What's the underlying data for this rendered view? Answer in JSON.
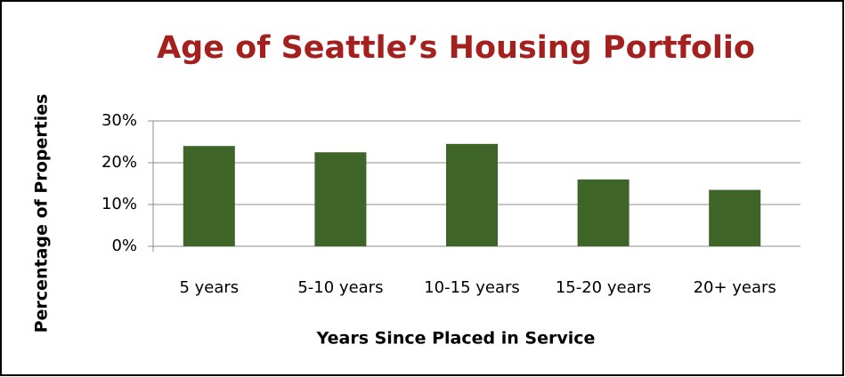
{
  "chart_data": {
    "type": "bar",
    "title": "Age of Seattle’s Housing Portfolio",
    "x_label": "Years Since Placed in Service",
    "y_label": "Percentage of Properties",
    "categories": [
      "5 years",
      "5-10 years",
      "10-15 years",
      "15-20 years",
      "20+ years"
    ],
    "values": [
      24,
      22.5,
      24.5,
      16,
      13.5
    ],
    "color": "#3f6428",
    "ylim": [
      0,
      30
    ],
    "yticks": [
      {
        "value": 0,
        "label": "0%"
      },
      {
        "value": 10,
        "label": "10%"
      },
      {
        "value": 20,
        "label": "20%"
      },
      {
        "value": 30,
        "label": "30%"
      }
    ],
    "grid": true
  }
}
